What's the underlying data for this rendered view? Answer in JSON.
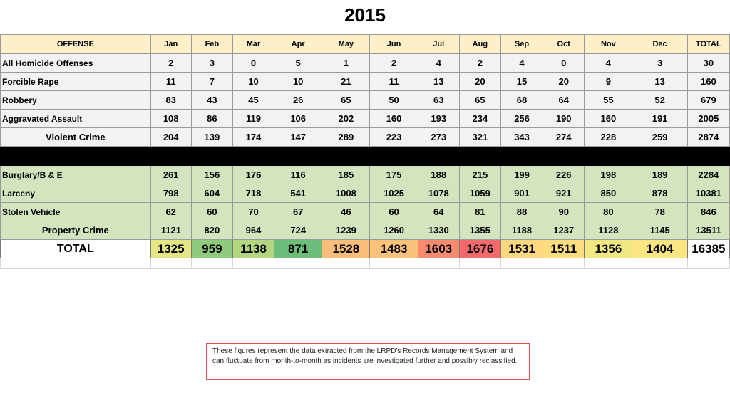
{
  "title": "2015",
  "header": [
    "OFFENSE",
    "Jan",
    "Feb",
    "Mar",
    "Apr",
    "May",
    "Jun",
    "Jul",
    "Aug",
    "Sep",
    "Oct",
    "Nov",
    "Dec",
    "TOTAL"
  ],
  "violent_rows": [
    {
      "label": "All Homicide Offenses",
      "values": [
        "2",
        "3",
        "0",
        "5",
        "1",
        "2",
        "4",
        "2",
        "4",
        "0",
        "4",
        "3",
        "30"
      ]
    },
    {
      "label": "Forcible Rape",
      "values": [
        "11",
        "7",
        "10",
        "10",
        "21",
        "11",
        "13",
        "20",
        "15",
        "20",
        "9",
        "13",
        "160"
      ]
    },
    {
      "label": "Robbery",
      "values": [
        "83",
        "43",
        "45",
        "26",
        "65",
        "50",
        "63",
        "65",
        "68",
        "64",
        "55",
        "52",
        "679"
      ]
    },
    {
      "label": "Aggravated Assault",
      "values": [
        "108",
        "86",
        "119",
        "106",
        "202",
        "160",
        "193",
        "234",
        "256",
        "190",
        "160",
        "191",
        "2005"
      ]
    }
  ],
  "violent_total": {
    "label": "Violent Crime",
    "values": [
      "204",
      "139",
      "174",
      "147",
      "289",
      "223",
      "273",
      "321",
      "343",
      "274",
      "228",
      "259",
      "2874"
    ]
  },
  "property_rows": [
    {
      "label": "Burglary/B & E",
      "values": [
        "261",
        "156",
        "176",
        "116",
        "185",
        "175",
        "188",
        "215",
        "199",
        "226",
        "198",
        "189",
        "2284"
      ]
    },
    {
      "label": "Larceny",
      "values": [
        "798",
        "604",
        "718",
        "541",
        "1008",
        "1025",
        "1078",
        "1059",
        "901",
        "921",
        "850",
        "878",
        "10381"
      ]
    },
    {
      "label": "Stolen Vehicle",
      "values": [
        "62",
        "60",
        "70",
        "67",
        "46",
        "60",
        "64",
        "81",
        "88",
        "90",
        "80",
        "78",
        "846"
      ]
    }
  ],
  "property_total": {
    "label": "Property Crime",
    "values": [
      "1121",
      "820",
      "964",
      "724",
      "1239",
      "1260",
      "1330",
      "1355",
      "1188",
      "1237",
      "1128",
      "1145",
      "13511"
    ]
  },
  "total_row": {
    "label": "TOTAL",
    "values": [
      "1325",
      "959",
      "1138",
      "871",
      "1528",
      "1483",
      "1603",
      "1676",
      "1531",
      "1511",
      "1356",
      "1404",
      "16385"
    ]
  },
  "heatmap_colors": [
    "#e3e682",
    "#8fcb7e",
    "#b4d680",
    "#6cbd7a",
    "#fbbd7a",
    "#fbc27c",
    "#f88a6e",
    "#f4696b",
    "#fed880",
    "#fedd81",
    "#f2e883",
    "#fbe683"
  ],
  "note": "These figures represent the data extracted from the LRPD’s Records Management System and can fluctuate from month-to-month as incidents are investigated further and possibly reclassified."
}
